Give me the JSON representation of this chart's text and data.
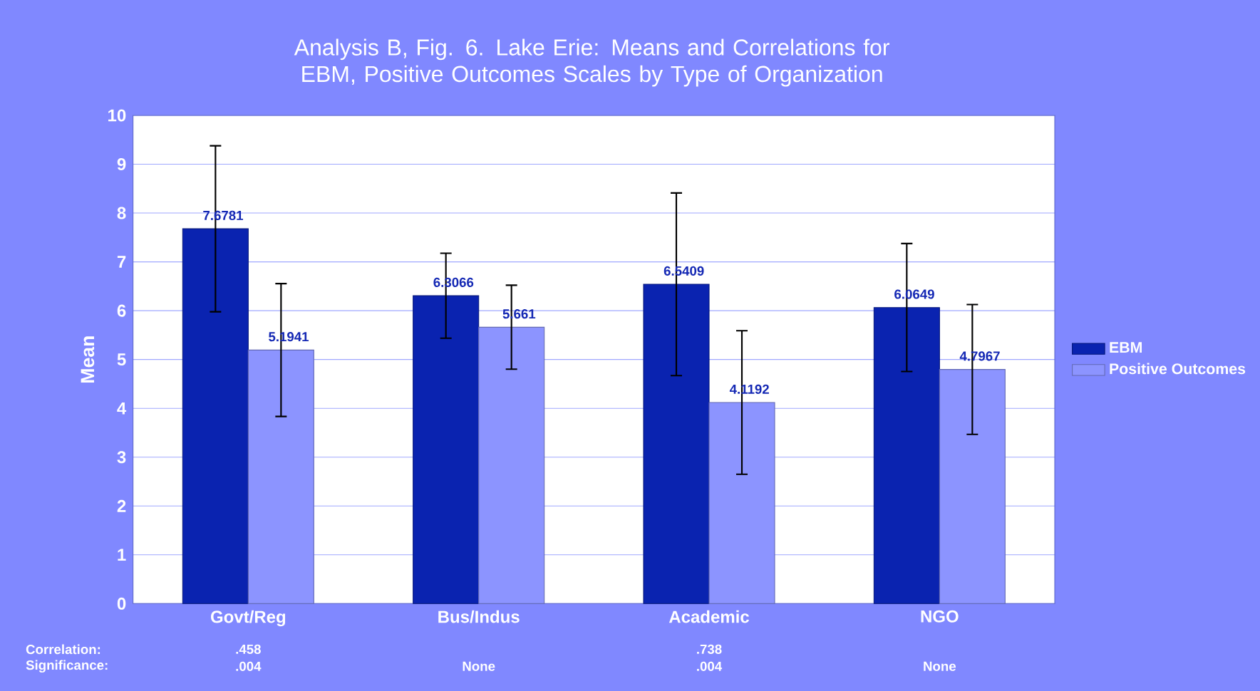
{
  "chart_data": {
    "type": "bar",
    "title": "Analysis B, Fig. 6. Lake Erie: Means and Correlations for EBM, Positive Outcomes Scales by Type of Organization",
    "ylabel": "Mean",
    "categories": [
      "Govt/Reg",
      "Bus/Indus",
      "Academic",
      "NGO"
    ],
    "series": [
      {
        "name": "EBM",
        "color": "#0a23b0",
        "values": [
          7.6781,
          6.3066,
          6.5409,
          6.0649
        ],
        "errors": [
          1.7,
          0.87,
          1.87,
          1.31
        ]
      },
      {
        "name": "Positive Outcomes",
        "color": "#8c94ff",
        "values": [
          5.1941,
          5.661,
          4.1192,
          4.7967
        ],
        "errors": [
          1.36,
          0.86,
          1.47,
          1.33
        ]
      }
    ],
    "ylim": [
      0,
      10
    ],
    "yticks": [
      0,
      1,
      2,
      3,
      4,
      5,
      6,
      7,
      8,
      9,
      10
    ],
    "grid": "y",
    "legend": "right",
    "data_labels": true,
    "annotations": [
      "Correlation:",
      "Significance:",
      ".458",
      ".004",
      ".738",
      ".004",
      "None",
      "None"
    ]
  }
}
